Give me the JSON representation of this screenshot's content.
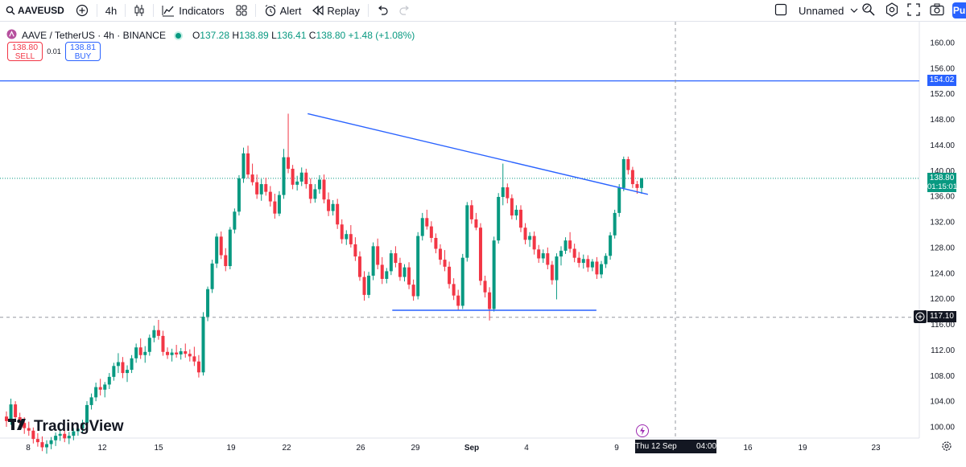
{
  "toolbar": {
    "symbol": "AAVEUSD",
    "interval": "4h",
    "indicators_label": "Indicators",
    "alert_label": "Alert",
    "replay_label": "Replay",
    "layout_name": "Unnamed",
    "publish_label": "Pu"
  },
  "legend": {
    "title": "AAVE / TetherUS · 4h · BINANCE",
    "open_label": "O",
    "open": "137.28",
    "high_label": "H",
    "high": "138.89",
    "low_label": "L",
    "low": "136.41",
    "close_label": "C",
    "close": "138.80",
    "change": "+1.48 (+1.08%)"
  },
  "trade": {
    "sell_price": "138.80",
    "sell_label": "SELL",
    "spread": "0.01",
    "buy_price": "138.81",
    "buy_label": "BUY"
  },
  "price_axis": [
    "160.00",
    "156.00",
    "152.00",
    "148.00",
    "144.00",
    "140.00",
    "136.00",
    "132.00",
    "128.00",
    "124.00",
    "120.00",
    "116.00",
    "112.00",
    "108.00",
    "104.00",
    "100.00"
  ],
  "time_axis": [
    "8",
    "12",
    "15",
    "19",
    "22",
    "26",
    "29",
    "Sep",
    "4",
    "9",
    "16",
    "19",
    "23"
  ],
  "tags": {
    "hline_price": "154.02",
    "last_price": "138.80",
    "countdown": "01:15:01",
    "crosshair_price": "117.10",
    "crosshair_time": "Thu 12 Sep '24",
    "crosshair_clock": "04:00"
  },
  "colors": {
    "up": "#089981",
    "down": "#f23645",
    "line": "#2962ff"
  },
  "brand": "TradingView",
  "chart_data": {
    "type": "candlestick",
    "ylim": [
      98,
      162
    ],
    "candles": [
      [
        101.6,
        102.4,
        100.0,
        100.9
      ],
      [
        100.9,
        104.4,
        100.3,
        103.5
      ],
      [
        103.5,
        104.0,
        100.9,
        101.5
      ],
      [
        101.5,
        102.2,
        100.0,
        100.6
      ],
      [
        100.6,
        101.5,
        98.9,
        99.8
      ],
      [
        99.8,
        100.8,
        98.6,
        99.4
      ],
      [
        99.4,
        99.9,
        97.4,
        98.1
      ],
      [
        98.1,
        99.0,
        96.9,
        97.6
      ],
      [
        97.6,
        98.5,
        96.2,
        96.8
      ],
      [
        96.8,
        97.9,
        95.8,
        97.3
      ],
      [
        97.3,
        98.4,
        96.5,
        97.9
      ],
      [
        97.9,
        99.1,
        97.0,
        98.6
      ],
      [
        98.6,
        99.7,
        97.8,
        98.9
      ],
      [
        98.9,
        99.5,
        97.6,
        98.2
      ],
      [
        98.2,
        99.2,
        97.3,
        98.6
      ],
      [
        98.6,
        99.8,
        97.9,
        99.3
      ],
      [
        99.3,
        100.4,
        98.6,
        99.7
      ],
      [
        99.7,
        101.1,
        99.0,
        100.6
      ],
      [
        100.6,
        104.0,
        100.1,
        103.4
      ],
      [
        103.4,
        105.2,
        102.7,
        104.6
      ],
      [
        104.6,
        106.9,
        104.0,
        106.2
      ],
      [
        106.2,
        107.5,
        104.9,
        105.8
      ],
      [
        105.8,
        107.0,
        104.6,
        106.6
      ],
      [
        106.6,
        108.4,
        105.9,
        107.8
      ],
      [
        107.8,
        110.0,
        107.2,
        109.5
      ],
      [
        109.5,
        111.5,
        108.4,
        110.1
      ],
      [
        110.1,
        110.9,
        107.6,
        108.4
      ],
      [
        108.4,
        109.6,
        107.0,
        108.9
      ],
      [
        108.9,
        111.2,
        108.4,
        110.7
      ],
      [
        110.7,
        113.0,
        110.0,
        112.4
      ],
      [
        112.4,
        113.8,
        110.6,
        111.2
      ],
      [
        111.2,
        112.6,
        110.0,
        111.7
      ],
      [
        111.7,
        114.4,
        111.1,
        113.9
      ],
      [
        113.9,
        115.8,
        113.2,
        115.1
      ],
      [
        115.1,
        116.7,
        113.6,
        114.2
      ],
      [
        114.2,
        115.0,
        111.1,
        111.7
      ],
      [
        111.7,
        112.4,
        110.6,
        111.2
      ],
      [
        111.2,
        112.2,
        110.2,
        111.6
      ],
      [
        111.6,
        112.8,
        110.8,
        111.3
      ],
      [
        111.3,
        112.3,
        110.5,
        111.8
      ],
      [
        111.8,
        113.0,
        110.8,
        111.4
      ],
      [
        111.4,
        112.1,
        110.2,
        111.0
      ],
      [
        111.0,
        112.5,
        109.5,
        110.2
      ],
      [
        110.2,
        111.2,
        107.7,
        108.5
      ],
      [
        108.5,
        117.9,
        108.0,
        117.2
      ],
      [
        117.2,
        121.9,
        116.5,
        121.5
      ],
      [
        121.5,
        126.1,
        120.9,
        125.5
      ],
      [
        125.5,
        130.2,
        124.8,
        129.7
      ],
      [
        129.7,
        130.5,
        126.2,
        126.8
      ],
      [
        126.8,
        127.9,
        124.3,
        125.1
      ],
      [
        125.1,
        131.2,
        124.6,
        130.8
      ],
      [
        130.8,
        134.1,
        130.2,
        133.6
      ],
      [
        133.6,
        139.3,
        133.0,
        138.8
      ],
      [
        138.8,
        143.6,
        138.1,
        142.7
      ],
      [
        142.7,
        143.9,
        138.8,
        139.4
      ],
      [
        139.4,
        141.1,
        137.7,
        138.2
      ],
      [
        138.2,
        139.4,
        135.6,
        136.3
      ],
      [
        136.3,
        138.7,
        135.3,
        137.9
      ],
      [
        137.9,
        138.9,
        136.1,
        136.7
      ],
      [
        136.7,
        137.6,
        134.4,
        135.2
      ],
      [
        135.2,
        136.4,
        132.5,
        133.3
      ],
      [
        133.3,
        136.8,
        132.9,
        136.2
      ],
      [
        136.2,
        143.4,
        135.6,
        142.1
      ],
      [
        142.1,
        148.9,
        139.6,
        140.3
      ],
      [
        140.3,
        140.9,
        137.1,
        137.8
      ],
      [
        137.8,
        139.2,
        136.9,
        138.3
      ],
      [
        138.3,
        140.5,
        137.6,
        139.7
      ],
      [
        139.7,
        140.3,
        137.2,
        137.9
      ],
      [
        137.9,
        138.8,
        134.9,
        135.6
      ],
      [
        135.6,
        137.9,
        135.0,
        137.1
      ],
      [
        137.1,
        139.3,
        136.4,
        138.6
      ],
      [
        138.6,
        139.4,
        134.9,
        135.5
      ],
      [
        135.5,
        136.6,
        132.9,
        133.7
      ],
      [
        133.7,
        135.4,
        133.0,
        134.8
      ],
      [
        134.8,
        135.6,
        130.9,
        131.6
      ],
      [
        131.6,
        132.4,
        128.6,
        129.3
      ],
      [
        129.3,
        130.7,
        128.4,
        130.1
      ],
      [
        130.1,
        131.5,
        128.0,
        128.5
      ],
      [
        128.5,
        129.6,
        125.9,
        126.6
      ],
      [
        126.6,
        127.4,
        122.8,
        123.4
      ],
      [
        123.4,
        124.3,
        119.7,
        120.6
      ],
      [
        120.6,
        124.2,
        120.1,
        123.6
      ],
      [
        123.6,
        128.8,
        122.9,
        128.2
      ],
      [
        128.2,
        129.4,
        124.6,
        125.3
      ],
      [
        125.3,
        126.5,
        122.3,
        123.1
      ],
      [
        123.1,
        124.8,
        122.4,
        124.3
      ],
      [
        124.3,
        127.6,
        123.7,
        127.1
      ],
      [
        127.1,
        128.2,
        124.9,
        125.6
      ],
      [
        125.6,
        126.4,
        122.8,
        123.4
      ],
      [
        123.4,
        125.4,
        122.7,
        124.9
      ],
      [
        124.9,
        125.7,
        121.5,
        122.2
      ],
      [
        122.2,
        123.0,
        119.7,
        120.4
      ],
      [
        120.4,
        130.4,
        119.9,
        129.8
      ],
      [
        129.8,
        133.4,
        129.1,
        132.6
      ],
      [
        132.6,
        133.9,
        130.8,
        131.3
      ],
      [
        131.3,
        132.1,
        128.8,
        129.5
      ],
      [
        129.5,
        130.2,
        127.1,
        127.8
      ],
      [
        127.8,
        128.5,
        125.3,
        126.1
      ],
      [
        126.1,
        127.6,
        124.3,
        125.0
      ],
      [
        125.0,
        125.8,
        121.6,
        122.3
      ],
      [
        122.3,
        123.2,
        119.8,
        120.5
      ],
      [
        120.5,
        121.4,
        118.2,
        118.9
      ],
      [
        118.9,
        127.0,
        118.4,
        126.4
      ],
      [
        126.4,
        135.1,
        125.8,
        134.6
      ],
      [
        134.6,
        135.4,
        131.7,
        132.4
      ],
      [
        132.4,
        133.4,
        130.7,
        131.1
      ],
      [
        131.1,
        131.8,
        122.1,
        122.8
      ],
      [
        122.8,
        123.6,
        120.2,
        121.0
      ],
      [
        121.0,
        121.8,
        116.6,
        118.4
      ],
      [
        118.4,
        129.7,
        118.0,
        129.1
      ],
      [
        129.1,
        136.5,
        128.6,
        135.9
      ],
      [
        135.9,
        141.1,
        134.6,
        137.4
      ],
      [
        137.4,
        138.0,
        134.9,
        135.7
      ],
      [
        135.7,
        136.3,
        132.4,
        133.0
      ],
      [
        133.0,
        134.6,
        132.3,
        133.9
      ],
      [
        133.9,
        134.6,
        130.4,
        131.1
      ],
      [
        131.1,
        131.8,
        128.5,
        129.2
      ],
      [
        129.2,
        130.4,
        128.1,
        129.8
      ],
      [
        129.8,
        130.5,
        126.9,
        127.7
      ],
      [
        127.7,
        128.4,
        125.6,
        126.3
      ],
      [
        126.3,
        127.7,
        125.6,
        127.1
      ],
      [
        127.1,
        128.0,
        124.6,
        125.3
      ],
      [
        125.3,
        125.9,
        122.2,
        122.9
      ],
      [
        122.9,
        127.1,
        119.9,
        126.6
      ],
      [
        126.6,
        128.2,
        125.2,
        127.5
      ],
      [
        127.5,
        129.6,
        127.0,
        129.1
      ],
      [
        129.1,
        130.4,
        127.2,
        127.8
      ],
      [
        127.8,
        128.6,
        125.7,
        126.4
      ],
      [
        126.4,
        127.3,
        124.9,
        125.6
      ],
      [
        125.6,
        126.9,
        124.7,
        126.2
      ],
      [
        126.2,
        126.8,
        124.2,
        124.9
      ],
      [
        124.9,
        126.2,
        124.3,
        125.8
      ],
      [
        125.8,
        126.5,
        123.1,
        123.8
      ],
      [
        123.8,
        125.9,
        123.2,
        125.4
      ],
      [
        125.4,
        127.1,
        124.8,
        126.7
      ],
      [
        126.7,
        130.4,
        126.1,
        129.9
      ],
      [
        129.9,
        133.9,
        129.4,
        133.4
      ],
      [
        133.4,
        137.9,
        132.8,
        137.3
      ],
      [
        137.3,
        142.2,
        136.8,
        141.8
      ],
      [
        141.8,
        142.2,
        139.4,
        140.1
      ],
      [
        140.1,
        140.6,
        137.3,
        137.9
      ],
      [
        137.9,
        138.4,
        136.4,
        137.3
      ],
      [
        137.3,
        138.9,
        136.4,
        138.8
      ]
    ],
    "trendline_top": [
      [
        23.2,
        148.9
      ],
      [
        9.6,
        136.3
      ]
    ],
    "support_line": [
      [
        27.8,
        118.2
      ],
      [
        7.9,
        118.2
      ]
    ],
    "hline": 154.02,
    "crosshair": {
      "price": 117.1,
      "time": "Thu 12 Sep '24 04:00"
    }
  }
}
